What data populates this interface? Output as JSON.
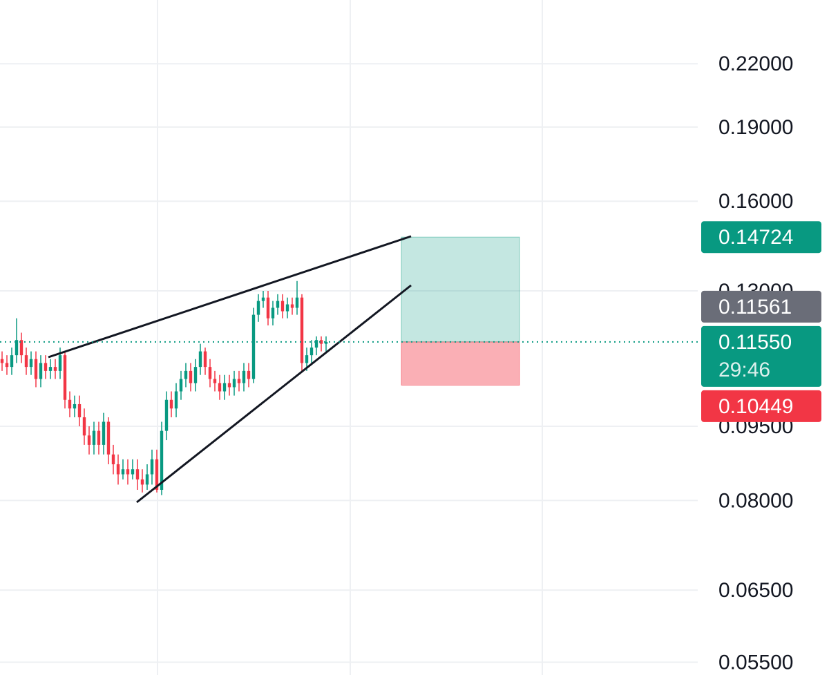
{
  "chart_data": {
    "type": "candlestick",
    "log_scale": true,
    "grid": true,
    "up_color": "#089981",
    "down_color": "#f23645",
    "ylim": [
      0.0534,
      0.255
    ],
    "yticks": [
      {
        "value": 0.22,
        "label": "0.22000"
      },
      {
        "value": 0.19,
        "label": "0.19000"
      },
      {
        "value": 0.16,
        "label": "0.16000"
      },
      {
        "value": 0.13,
        "label": "0.13000"
      },
      {
        "value": 0.095,
        "label": "0.09500"
      },
      {
        "value": 0.08,
        "label": "0.08000"
      },
      {
        "value": 0.065,
        "label": "0.06500"
      },
      {
        "value": 0.055,
        "label": "0.05500"
      }
    ],
    "open": [
      0.111,
      0.11,
      0.109,
      0.112,
      0.116,
      0.112,
      0.109,
      0.111,
      0.106,
      0.11,
      0.108,
      0.109,
      0.108,
      0.112,
      0.101,
      0.099,
      0.1,
      0.097,
      0.093,
      0.091,
      0.094,
      0.091,
      0.096,
      0.089,
      0.087,
      0.085,
      0.086,
      0.085,
      0.086,
      0.084,
      0.083,
      0.085,
      0.088,
      0.082,
      0.094,
      0.101,
      0.099,
      0.103,
      0.106,
      0.108,
      0.105,
      0.109,
      0.113,
      0.109,
      0.106,
      0.105,
      0.103,
      0.105,
      0.104,
      0.106,
      0.105,
      0.108,
      0.106,
      0.123,
      0.127,
      0.128,
      0.122,
      0.125,
      0.127,
      0.124,
      0.126,
      0.125,
      0.128,
      0.11,
      0.112,
      0.114,
      0.116,
      0.115
    ],
    "high": [
      0.113,
      0.112,
      0.114,
      0.122,
      0.118,
      0.114,
      0.113,
      0.113,
      0.112,
      0.112,
      0.111,
      0.111,
      0.114,
      0.113,
      0.103,
      0.102,
      0.102,
      0.099,
      0.095,
      0.096,
      0.096,
      0.098,
      0.097,
      0.091,
      0.089,
      0.088,
      0.088,
      0.088,
      0.088,
      0.086,
      0.087,
      0.09,
      0.09,
      0.096,
      0.103,
      0.103,
      0.105,
      0.108,
      0.11,
      0.11,
      0.111,
      0.115,
      0.114,
      0.111,
      0.108,
      0.107,
      0.107,
      0.107,
      0.108,
      0.108,
      0.11,
      0.11,
      0.125,
      0.129,
      0.13,
      0.13,
      0.127,
      0.129,
      0.129,
      0.128,
      0.128,
      0.133,
      0.129,
      0.114,
      0.116,
      0.117,
      0.117,
      0.117
    ],
    "low": [
      0.108,
      0.107,
      0.107,
      0.11,
      0.11,
      0.107,
      0.107,
      0.104,
      0.104,
      0.106,
      0.106,
      0.106,
      0.106,
      0.099,
      0.097,
      0.097,
      0.095,
      0.091,
      0.089,
      0.089,
      0.089,
      0.089,
      0.087,
      0.085,
      0.083,
      0.084,
      0.083,
      0.084,
      0.082,
      0.0815,
      0.082,
      0.083,
      0.0815,
      0.081,
      0.092,
      0.097,
      0.097,
      0.101,
      0.104,
      0.103,
      0.103,
      0.107,
      0.107,
      0.104,
      0.103,
      0.101,
      0.101,
      0.102,
      0.102,
      0.103,
      0.103,
      0.104,
      0.105,
      0.121,
      0.125,
      0.12,
      0.12,
      0.123,
      0.122,
      0.122,
      0.123,
      0.123,
      0.108,
      0.108,
      0.11,
      0.112,
      0.113,
      0.113
    ],
    "close": [
      0.11,
      0.109,
      0.112,
      0.116,
      0.112,
      0.109,
      0.111,
      0.106,
      0.11,
      0.108,
      0.109,
      0.108,
      0.112,
      0.101,
      0.099,
      0.1,
      0.097,
      0.093,
      0.091,
      0.094,
      0.091,
      0.096,
      0.089,
      0.087,
      0.085,
      0.086,
      0.085,
      0.086,
      0.084,
      0.083,
      0.085,
      0.088,
      0.082,
      0.094,
      0.101,
      0.099,
      0.103,
      0.106,
      0.108,
      0.105,
      0.109,
      0.113,
      0.109,
      0.106,
      0.105,
      0.103,
      0.105,
      0.104,
      0.106,
      0.105,
      0.108,
      0.106,
      0.123,
      0.127,
      0.128,
      0.122,
      0.125,
      0.127,
      0.124,
      0.126,
      0.125,
      0.128,
      0.11,
      0.112,
      0.114,
      0.116,
      0.115,
      0.1155
    ],
    "price_labels": [
      {
        "value": 0.14724,
        "label": "0.14724",
        "color": "#089981"
      },
      {
        "value": 0.11561,
        "label": "0.11561",
        "color": "#6a6d78"
      },
      {
        "value": 0.1155,
        "label": "0.11550",
        "sublabel": "29:46",
        "color": "#089981"
      },
      {
        "value": 0.10449,
        "label": "0.10449",
        "color": "#f23645"
      }
    ]
  }
}
